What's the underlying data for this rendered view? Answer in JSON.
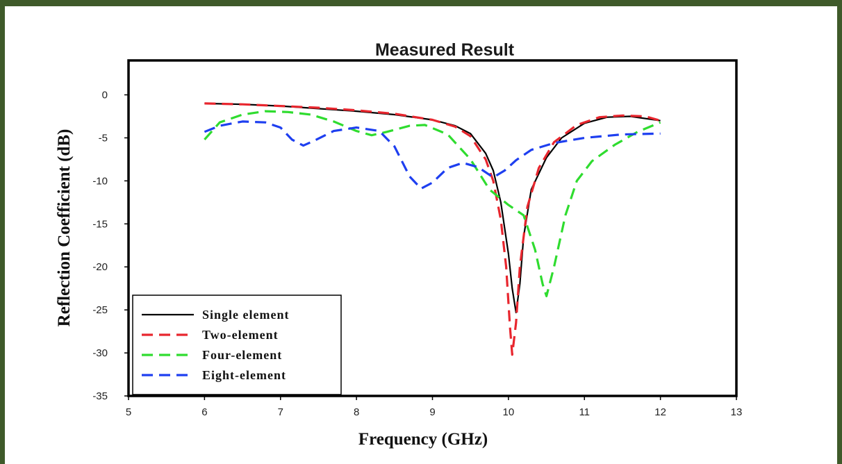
{
  "chart_data": {
    "type": "line",
    "title": "Measured Result",
    "xlabel": "Frequency (GHz)",
    "ylabel": "Reflection Coefficient (dB)",
    "xlim": [
      5,
      13
    ],
    "ylim": [
      -35,
      4
    ],
    "xticks": [
      "5",
      "6",
      "7",
      "8",
      "9",
      "10",
      "11",
      "12",
      "13"
    ],
    "yticks": [
      "0",
      "-5",
      "-10",
      "-15",
      "-20",
      "-25",
      "-30",
      "-35"
    ],
    "legend_position": "bottom-left",
    "series": [
      {
        "name": "Single element",
        "color": "#000000",
        "style": "solid",
        "points": [
          [
            6,
            -1
          ],
          [
            6.5,
            -1.1
          ],
          [
            7,
            -1.3
          ],
          [
            7.5,
            -1.6
          ],
          [
            8,
            -1.9
          ],
          [
            8.5,
            -2.3
          ],
          [
            9,
            -2.9
          ],
          [
            9.3,
            -3.6
          ],
          [
            9.5,
            -4.5
          ],
          [
            9.7,
            -6.8
          ],
          [
            9.8,
            -8.8
          ],
          [
            9.9,
            -12.5
          ],
          [
            10,
            -18.5
          ],
          [
            10.05,
            -22.5
          ],
          [
            10.1,
            -25.3
          ],
          [
            10.15,
            -22
          ],
          [
            10.2,
            -16.5
          ],
          [
            10.3,
            -11
          ],
          [
            10.5,
            -7.3
          ],
          [
            10.7,
            -5
          ],
          [
            11,
            -3.3
          ],
          [
            11.3,
            -2.6
          ],
          [
            11.6,
            -2.5
          ],
          [
            12,
            -3
          ]
        ]
      },
      {
        "name": "Two-element",
        "color": "#e8262e",
        "style": "dashed",
        "points": [
          [
            6,
            -1
          ],
          [
            6.5,
            -1.1
          ],
          [
            7,
            -1.3
          ],
          [
            7.5,
            -1.5
          ],
          [
            8,
            -1.8
          ],
          [
            8.5,
            -2.2
          ],
          [
            9,
            -2.9
          ],
          [
            9.3,
            -3.7
          ],
          [
            9.5,
            -4.8
          ],
          [
            9.7,
            -7.5
          ],
          [
            9.8,
            -10
          ],
          [
            9.9,
            -14.5
          ],
          [
            9.97,
            -20
          ],
          [
            10.02,
            -27
          ],
          [
            10.05,
            -30.2
          ],
          [
            10.1,
            -26.5
          ],
          [
            10.15,
            -20
          ],
          [
            10.25,
            -13
          ],
          [
            10.4,
            -8.5
          ],
          [
            10.6,
            -5.5
          ],
          [
            10.9,
            -3.5
          ],
          [
            11.2,
            -2.6
          ],
          [
            11.5,
            -2.4
          ],
          [
            11.8,
            -2.5
          ],
          [
            12,
            -3
          ]
        ]
      },
      {
        "name": "Four-element",
        "color": "#2fdc2f",
        "style": "dashed",
        "points": [
          [
            6,
            -5.2
          ],
          [
            6.2,
            -3.2
          ],
          [
            6.5,
            -2.3
          ],
          [
            6.8,
            -1.9
          ],
          [
            7.1,
            -2
          ],
          [
            7.4,
            -2.3
          ],
          [
            7.7,
            -3.1
          ],
          [
            8,
            -4.2
          ],
          [
            8.2,
            -4.7
          ],
          [
            8.4,
            -4.3
          ],
          [
            8.7,
            -3.6
          ],
          [
            8.9,
            -3.5
          ],
          [
            9.2,
            -4.6
          ],
          [
            9.5,
            -7.5
          ],
          [
            9.75,
            -11
          ],
          [
            10,
            -12.8
          ],
          [
            10.2,
            -14
          ],
          [
            10.35,
            -18
          ],
          [
            10.45,
            -22
          ],
          [
            10.5,
            -23.4
          ],
          [
            10.6,
            -20
          ],
          [
            10.75,
            -14
          ],
          [
            10.9,
            -10
          ],
          [
            11.1,
            -7.7
          ],
          [
            11.4,
            -5.8
          ],
          [
            11.7,
            -4.3
          ],
          [
            12,
            -3.2
          ]
        ]
      },
      {
        "name": "Eight-element",
        "color": "#1e3ff0",
        "style": "dashed",
        "points": [
          [
            6,
            -4.3
          ],
          [
            6.2,
            -3.6
          ],
          [
            6.5,
            -3.1
          ],
          [
            6.8,
            -3.2
          ],
          [
            7,
            -3.8
          ],
          [
            7.15,
            -5.2
          ],
          [
            7.3,
            -5.9
          ],
          [
            7.45,
            -5.3
          ],
          [
            7.7,
            -4.2
          ],
          [
            8,
            -3.8
          ],
          [
            8.3,
            -4.2
          ],
          [
            8.5,
            -6
          ],
          [
            8.7,
            -9.5
          ],
          [
            8.85,
            -10.9
          ],
          [
            9,
            -10.2
          ],
          [
            9.2,
            -8.5
          ],
          [
            9.4,
            -7.9
          ],
          [
            9.6,
            -8.4
          ],
          [
            9.8,
            -9.6
          ],
          [
            9.95,
            -8.8
          ],
          [
            10.1,
            -7.6
          ],
          [
            10.3,
            -6.4
          ],
          [
            10.6,
            -5.6
          ],
          [
            11,
            -5
          ],
          [
            11.5,
            -4.6
          ],
          [
            12,
            -4.5
          ]
        ]
      }
    ]
  }
}
